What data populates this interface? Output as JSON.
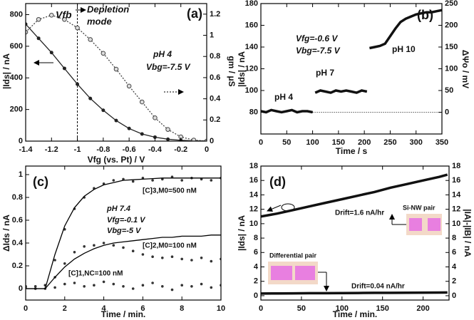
{
  "chart_data": [
    {
      "type": "line",
      "x_label": "Vfg (vs. Pt) / V",
      "y_label": "|Ids| / nA",
      "y2_label": "gm / μS",
      "annotations": [
        "(a)",
        "Vfb",
        "Depletion",
        "mode",
        "pH 4",
        "Vbg=-7.5 V"
      ],
      "x": [
        -1.4,
        -1.3,
        -1.2,
        -1.1,
        -1.0,
        -0.9,
        -0.8,
        -0.7,
        -0.6,
        -0.5,
        -0.4,
        -0.3,
        -0.2,
        -0.1,
        0
      ],
      "series": [
        {
          "style": "line-dot",
          "color": "#222222",
          "values": [
            740,
            650,
            560,
            460,
            360,
            270,
            195,
            130,
            80,
            45,
            25,
            12,
            5,
            2,
            1
          ]
        },
        {
          "style": "dotted-circle",
          "color": "#444444",
          "axis": "y2",
          "values": [
            1.03,
            1.15,
            1.19,
            1.15,
            1.07,
            0.96,
            0.83,
            0.68,
            0.52,
            0.37,
            0.22,
            0.11,
            0.04,
            0.01,
            0
          ]
        }
      ],
      "xlim": [
        -1.4,
        0
      ],
      "xticks": [
        -1.4,
        -1.2,
        -1,
        -0.8,
        -0.6,
        -0.4,
        -0.2,
        0
      ],
      "ylim": [
        0,
        870
      ],
      "yticks": [
        0,
        200,
        400,
        600,
        800
      ],
      "y2lim": [
        0,
        1.3
      ],
      "y2ticks": [
        0,
        0.2,
        0.4,
        0.6,
        0.8,
        1,
        1.2
      ],
      "vline": -1
    },
    {
      "type": "line",
      "x_label": "Time / s",
      "y_label": "|Ids| / nA",
      "y2_label": "ΔΨo / mV",
      "annotations": [
        "(b)",
        "Vfg=-0.6 V",
        "Vbg=-7.5 V",
        "pH 4",
        "pH 7",
        "pH 10"
      ],
      "x": [
        0,
        10,
        20,
        30,
        40,
        50,
        60,
        70,
        80,
        90,
        100,
        102,
        105,
        115,
        125,
        135,
        145,
        155,
        165,
        175,
        185,
        195,
        205,
        207,
        210,
        220,
        230,
        240,
        250,
        260,
        270,
        280,
        290,
        300,
        310,
        320,
        330,
        340,
        350
      ],
      "series": [
        {
          "style": "thick",
          "color": "#111111",
          "values": [
            81,
            80,
            82,
            81,
            80,
            81,
            82,
            80,
            81,
            81,
            80,
            null,
            98,
            100,
            99,
            98,
            100,
            99,
            100,
            99,
            98,
            100,
            99,
            null,
            139,
            140,
            141,
            143,
            150,
            157,
            163,
            166,
            168,
            170,
            171,
            172,
            172,
            173,
            174
          ]
        }
      ],
      "xlim": [
        0,
        350
      ],
      "xticks": [
        0,
        50,
        100,
        150,
        200,
        250,
        300,
        350
      ],
      "ylim": [
        60,
        180
      ],
      "yticks": [
        80,
        100,
        120,
        140,
        160,
        180
      ],
      "y2lim": [
        -50,
        250
      ],
      "y2ticks": [
        0,
        50,
        100,
        150,
        200,
        250
      ],
      "hline_y2": 0
    },
    {
      "type": "line",
      "x_label": "Time / min.",
      "y_label": "ΔIds / nA",
      "annotations": [
        "(c)",
        "[C]3,M0=500 nM",
        "pH 7.4",
        "Vfg=-0.1 V",
        "Vbg=-5 V",
        "[C]2,M0=100 nM",
        "[C]1,NC=100 nM"
      ],
      "x": [
        0,
        0.5,
        1,
        1.5,
        2,
        2.5,
        3,
        3.5,
        4,
        4.5,
        5,
        5.5,
        6,
        6.5,
        7,
        7.5,
        8,
        8.5,
        9,
        9.5,
        10
      ],
      "series": [
        {
          "style": "points",
          "color": "#333333",
          "values": [
            0.02,
            0.0,
            0.03,
            0.25,
            0.52,
            0.7,
            0.8,
            0.88,
            0.92,
            0.95,
            0.96,
            0.94,
            0.97,
            0.95,
            0.96,
            0.98,
            0.95,
            0.97,
            0.96,
            0.95,
            0.97
          ]
        },
        {
          "style": "points",
          "color": "#333333",
          "values": [
            0.01,
            0.02,
            0.0,
            0.1,
            0.22,
            0.32,
            0.37,
            0.38,
            0.4,
            0.38,
            0.36,
            0.33,
            0.3,
            0.28,
            0.27,
            0.28,
            0.26,
            0.25,
            0.27,
            0.24,
            0.26
          ]
        },
        {
          "style": "points",
          "color": "#333333",
          "values": [
            0.02,
            0.0,
            0.03,
            0.01,
            0.04,
            0.05,
            0.02,
            0.03,
            0.06,
            0.04,
            0.02,
            0.0,
            0.03,
            0.05,
            0.02,
            -0.01,
            0.03,
            0.02,
            0.04,
            0.01,
            0.03
          ]
        },
        {
          "style": "line",
          "color": "#000000",
          "values": [
            0,
            0,
            0,
            0.3,
            0.55,
            0.71,
            0.81,
            0.87,
            0.91,
            0.93,
            0.95,
            0.955,
            0.96,
            0.965,
            0.97,
            0.97,
            0.97,
            0.97,
            0.97,
            0.97,
            0.97
          ]
        },
        {
          "style": "line",
          "color": "#000000",
          "values": [
            0,
            0,
            0,
            0.1,
            0.19,
            0.26,
            0.31,
            0.35,
            0.38,
            0.4,
            0.41,
            0.42,
            0.43,
            0.44,
            0.45,
            0.45,
            0.46,
            0.46,
            0.46,
            0.47,
            0.47
          ]
        }
      ],
      "xlim": [
        0,
        10
      ],
      "xticks": [
        0,
        2,
        4,
        6,
        8,
        10
      ],
      "ylim": [
        -0.1,
        1.075
      ],
      "yticks": [
        0,
        0.2,
        0.4,
        0.6,
        0.8,
        1
      ]
    },
    {
      "type": "line",
      "x_label": "Time / min.",
      "y_label": "|Ids| / nA",
      "y2_label": "|IA|-|IB| / nA",
      "annotations": [
        "(d)",
        "Drift=1.6 nA/hr",
        "Si-NW pair",
        "Differential pair",
        "Drift=0.04 nA/hr"
      ],
      "x": [
        0,
        20,
        40,
        60,
        80,
        100,
        120,
        140,
        160,
        180,
        200,
        220,
        230
      ],
      "series": [
        {
          "style": "thick",
          "color": "#111111",
          "values": [
            11.0,
            11.4,
            11.9,
            12.4,
            12.9,
            13.4,
            13.9,
            14.4,
            15.0,
            15.5,
            16.0,
            16.5,
            16.8
          ]
        },
        {
          "style": "thick",
          "color": "#111111",
          "axis": "y2",
          "values": [
            0.3,
            0.32,
            0.33,
            0.35,
            0.35,
            0.37,
            0.38,
            0.4,
            0.4,
            0.42,
            0.43,
            0.44,
            0.45
          ]
        }
      ],
      "xlim": [
        0,
        232
      ],
      "xticks": [
        0,
        50,
        100,
        150,
        200
      ],
      "ylim": [
        -0.6,
        18
      ],
      "yticks": [
        0,
        2,
        4,
        6,
        8,
        10,
        12,
        14,
        16,
        18
      ],
      "y2lim": [
        -0.6,
        18
      ],
      "y2ticks": [
        0,
        2,
        4,
        6,
        8,
        10,
        12,
        14,
        16,
        18
      ]
    }
  ]
}
